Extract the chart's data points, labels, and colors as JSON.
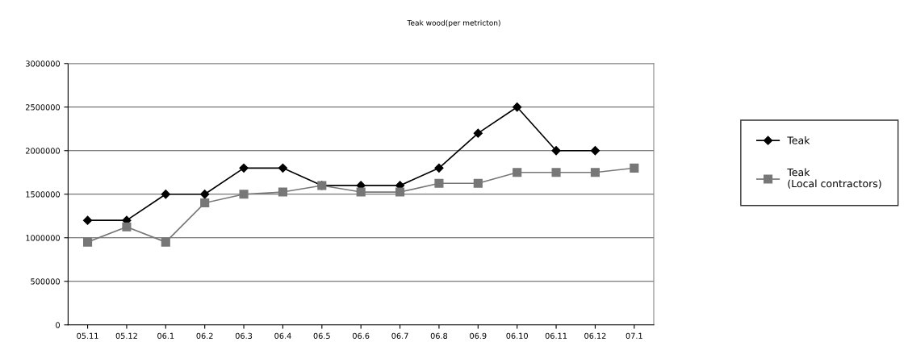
{
  "chart_data": {
    "type": "line",
    "title": "Teak wood(per metricton)",
    "categories": [
      "05.11",
      "05.12",
      "06.1",
      "06.2",
      "06.3",
      "06.4",
      "06.5",
      "06.6",
      "06.7",
      "06.8",
      "06.9",
      "06.10",
      "06.11",
      "06.12",
      "07.1"
    ],
    "series": [
      {
        "name": "Teak",
        "color": "#000000",
        "marker": "diamond",
        "values": [
          1200000,
          1200000,
          1500000,
          1500000,
          1800000,
          1800000,
          1600000,
          1600000,
          1600000,
          1800000,
          2200000,
          2500000,
          2000000,
          2000000,
          null
        ]
      },
      {
        "name": "Teak\n(Local contractors)",
        "color": "#777777",
        "marker": "square",
        "values": [
          950000,
          1125000,
          950000,
          1400000,
          1500000,
          1525000,
          1600000,
          1525000,
          1525000,
          1625000,
          1625000,
          1750000,
          1750000,
          1750000,
          1800000
        ]
      }
    ],
    "ylim": [
      0,
      3000000
    ],
    "yticks": [
      0,
      500000,
      1000000,
      1500000,
      2000000,
      2500000,
      3000000
    ],
    "grid": "y",
    "legend": "right",
    "line_style": "solid"
  }
}
